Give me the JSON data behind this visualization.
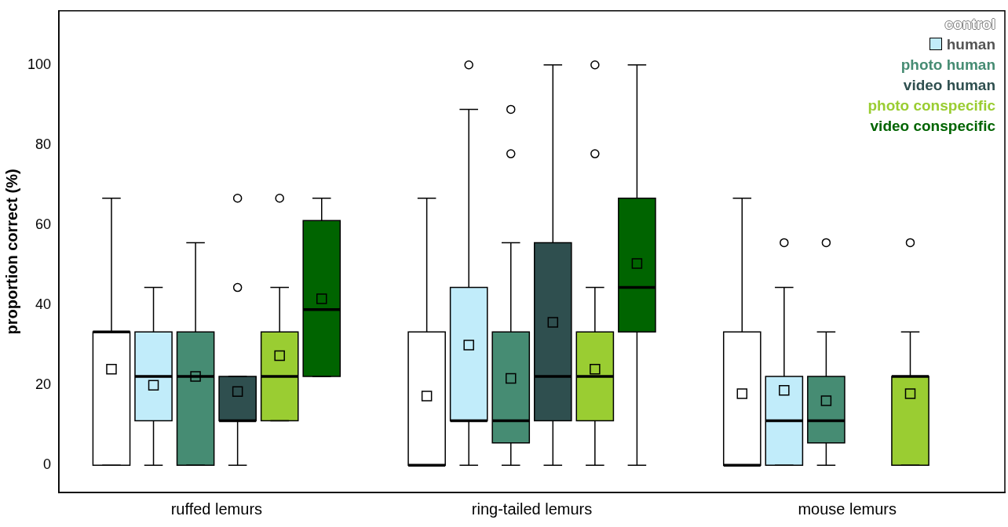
{
  "chart_data": {
    "type": "box",
    "ylabel": "proportion correct (%)",
    "categories": [
      "ruffed lemurs",
      "ring-tailed lemurs",
      "mouse lemurs"
    ],
    "ylim": [
      -6.8,
      113.5
    ],
    "yticks": [
      0,
      20,
      40,
      60,
      80,
      100
    ],
    "legend": "top right",
    "series": [
      {
        "name": "control",
        "color": "#ffffff",
        "boxes": [
          {
            "low": 0,
            "q1": 0,
            "median": 33.3,
            "q3": 33.3,
            "high": 66.7,
            "mean": 24.0
          },
          {
            "low": 0,
            "q1": 0,
            "median": 0,
            "q3": 33.3,
            "high": 66.7,
            "mean": 17.3
          },
          {
            "low": 0,
            "q1": 0,
            "median": 0,
            "q3": 33.3,
            "high": 66.7,
            "mean": 17.9
          }
        ]
      },
      {
        "name": "human",
        "color": "#c1ecfa",
        "boxes": [
          {
            "low": 0,
            "q1": 11.1,
            "median": 22.2,
            "q3": 33.3,
            "high": 44.4,
            "mean": 20.0
          },
          {
            "low": 0,
            "q1": 11.1,
            "median": 11.1,
            "q3": 44.4,
            "high": 88.9,
            "mean": 30.0,
            "outliers": [
              100
            ]
          },
          {
            "low": 0,
            "q1": 0,
            "median": 11.1,
            "q3": 22.2,
            "high": 44.4,
            "mean": 18.7,
            "outliers": [
              55.6
            ]
          }
        ]
      },
      {
        "name": "photo human",
        "color": "#468c73",
        "boxes": [
          {
            "low": 0,
            "q1": 0,
            "median": 22.2,
            "q3": 33.3,
            "high": 55.6,
            "mean": 22.2
          },
          {
            "low": 0,
            "q1": 5.6,
            "median": 11.1,
            "q3": 33.3,
            "high": 55.6,
            "mean": 21.7,
            "outliers": [
              77.8,
              88.9
            ]
          },
          {
            "low": 0,
            "q1": 5.6,
            "median": 11.1,
            "q3": 22.2,
            "high": 33.3,
            "mean": 16.1,
            "outliers": [
              55.6
            ]
          }
        ]
      },
      {
        "name": "video human",
        "color": "#2f4f4f",
        "boxes": [
          {
            "low": 0,
            "q1": 11.1,
            "median": 11.1,
            "q3": 22.2,
            "high": 22.2,
            "mean": 18.4,
            "outliers": [
              44.4,
              66.7
            ]
          },
          {
            "low": 0,
            "q1": 11.1,
            "median": 22.2,
            "q3": 55.6,
            "high": 100,
            "mean": 35.7
          },
          null
        ]
      },
      {
        "name": "photo conspecific",
        "color": "#9acd32",
        "boxes": [
          {
            "low": 11.1,
            "q1": 11.1,
            "median": 22.2,
            "q3": 33.3,
            "high": 44.4,
            "mean": 27.4,
            "outliers": [
              66.7
            ]
          },
          {
            "low": 0,
            "q1": 11.1,
            "median": 22.2,
            "q3": 33.3,
            "high": 44.4,
            "mean": 24.0,
            "outliers": [
              77.8,
              100
            ]
          },
          {
            "low": 0,
            "q1": 0,
            "median": 22.2,
            "q3": 22.2,
            "high": 33.3,
            "mean": 17.9,
            "outliers": [
              55.6
            ]
          }
        ]
      },
      {
        "name": "video conspecific",
        "color": "#006400",
        "boxes": [
          {
            "low": 22.2,
            "q1": 22.2,
            "median": 38.9,
            "q3": 61.1,
            "high": 66.7,
            "mean": 41.6
          },
          {
            "low": 0,
            "q1": 33.3,
            "median": 44.4,
            "q3": 66.7,
            "high": 100,
            "mean": 50.4
          },
          null
        ]
      }
    ]
  }
}
